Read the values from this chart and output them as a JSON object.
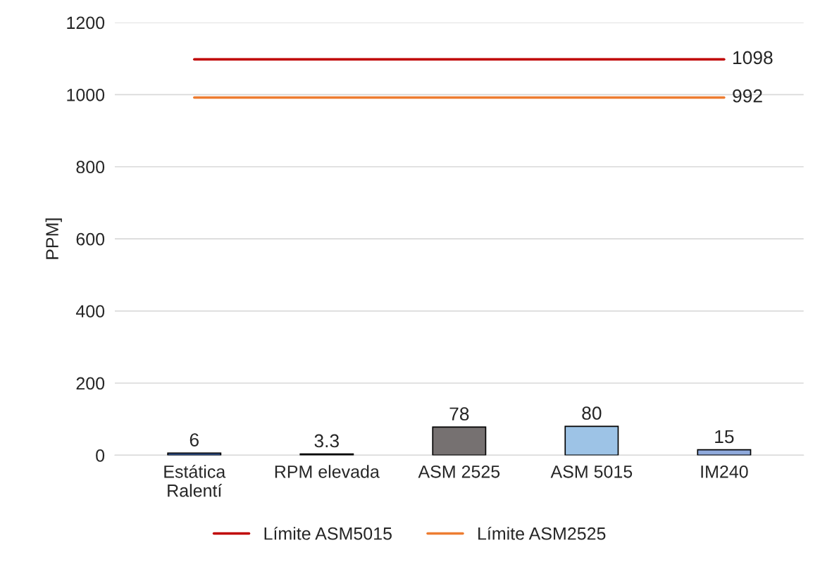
{
  "chart_data": {
    "type": "bar",
    "ylabel": "PPM]",
    "categories": [
      "Estática\nRalentí",
      "RPM elevada",
      "ASM 2525",
      "ASM 5015",
      "IM240"
    ],
    "series": [
      {
        "values": [
          6,
          3.3,
          78,
          80,
          15
        ],
        "colors": [
          "#4472c4",
          "#a5a5a5",
          "#767171",
          "#9dc3e6",
          "#8faadc"
        ]
      },
      {
        "type": "line",
        "name": "Límite ASM5015",
        "color": "#c00000",
        "values": [
          1098,
          1098,
          1098,
          1098,
          1098
        ],
        "value_labels": [
          null,
          null,
          null,
          null,
          "1098"
        ]
      },
      {
        "type": "line",
        "name": "Límite ASM2525",
        "color": "#ed7d31",
        "values": [
          992,
          992,
          992,
          992,
          992
        ],
        "value_labels": [
          null,
          null,
          null,
          null,
          "992"
        ]
      }
    ],
    "data_labels": true,
    "ylim": [
      0,
      1200
    ],
    "yticks": [
      0,
      200,
      400,
      600,
      800,
      1000,
      1200
    ],
    "grid": "y",
    "legend": "bottom"
  }
}
